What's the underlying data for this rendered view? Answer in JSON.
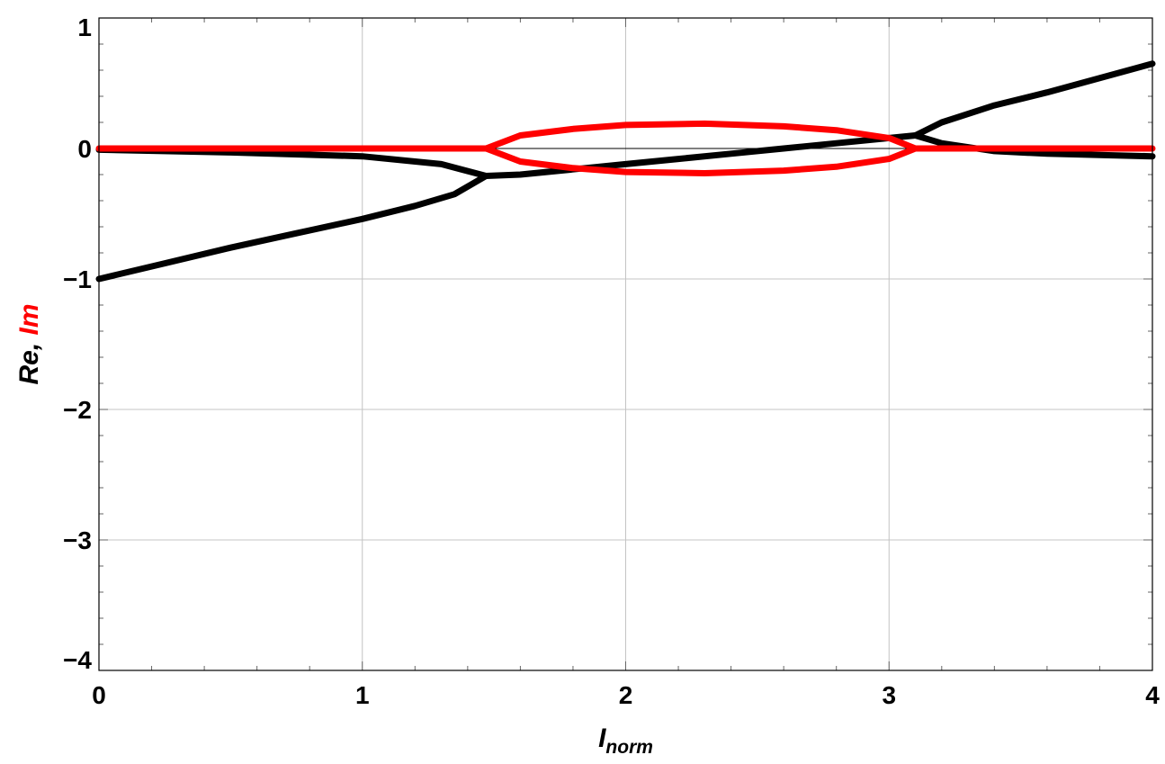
{
  "chart_data": {
    "type": "line",
    "title": "",
    "xlabel": {
      "main": "I",
      "subscript": "norm"
    },
    "ylabel": {
      "parts": [
        {
          "text": "Re, ",
          "color": "#000000"
        },
        {
          "text": "Im",
          "color": "#ff0000"
        }
      ]
    },
    "xlim": [
      0,
      4
    ],
    "ylim": [
      -4,
      1
    ],
    "x_ticks": [
      0,
      1,
      2,
      3,
      4
    ],
    "y_ticks": [
      1,
      0,
      -1,
      -2,
      -3,
      -4
    ],
    "x_tick_labels": [
      "0",
      "1",
      "2",
      "3",
      "4"
    ],
    "y_tick_labels": [
      "1",
      "0",
      "−1",
      "−2",
      "−3",
      "−4"
    ],
    "grid": true,
    "legend": "none",
    "series": [
      {
        "part": "real",
        "color": "#000000",
        "x": [
          0,
          0.5,
          1.0,
          1.3,
          1.47,
          1.6,
          1.8,
          2.0,
          2.2,
          2.4,
          2.6,
          2.8,
          3.0,
          3.1
        ],
        "y": [
          -0.01,
          -0.03,
          -0.06,
          -0.12,
          -0.21,
          -0.2,
          -0.16,
          -0.12,
          -0.08,
          -0.04,
          0.0,
          0.04,
          0.08,
          0.1
        ]
      },
      {
        "part": "real",
        "color": "#000000",
        "x": [
          0,
          0.25,
          0.5,
          0.75,
          1.0,
          1.2,
          1.35,
          1.47
        ],
        "y": [
          -1.0,
          -0.88,
          -0.76,
          -0.65,
          -0.54,
          -0.44,
          -0.35,
          -0.21
        ]
      },
      {
        "part": "real",
        "color": "#000000",
        "x": [
          3.1,
          3.2,
          3.4,
          3.6,
          3.8,
          4.0
        ],
        "y": [
          0.1,
          0.2,
          0.33,
          0.43,
          0.54,
          0.65
        ]
      },
      {
        "part": "real",
        "color": "#000000",
        "x": [
          3.1,
          3.2,
          3.4,
          3.6,
          3.8,
          4.0
        ],
        "y": [
          0.1,
          0.04,
          -0.02,
          -0.04,
          -0.05,
          -0.06
        ]
      },
      {
        "part": "imaginary",
        "color": "#ff0000",
        "x": [
          0,
          1.0,
          1.47,
          1.6,
          1.8,
          2.0,
          2.3,
          2.6,
          2.8,
          3.0,
          3.1,
          3.5,
          4.0
        ],
        "y": [
          0,
          0,
          0,
          0.1,
          0.15,
          0.18,
          0.19,
          0.17,
          0.14,
          0.08,
          0,
          0,
          0
        ]
      },
      {
        "part": "imaginary",
        "color": "#ff0000",
        "x": [
          1.47,
          1.6,
          1.8,
          2.0,
          2.3,
          2.6,
          2.8,
          3.0,
          3.1
        ],
        "y": [
          0,
          -0.1,
          -0.15,
          -0.18,
          -0.19,
          -0.17,
          -0.14,
          -0.08,
          0
        ]
      }
    ]
  }
}
